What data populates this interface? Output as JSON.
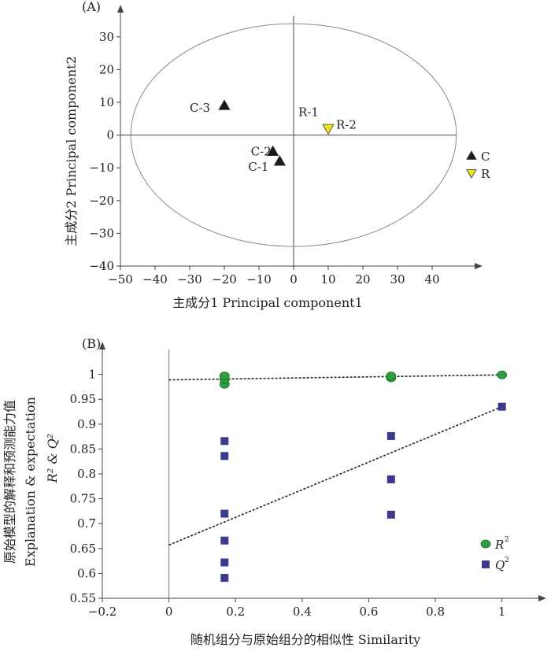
{
  "chart_data": [
    {
      "panel_label": "(A)",
      "type": "scatter",
      "xlabel": "主成分1 Principal component1",
      "ylabel": "主成分2 Principal component2",
      "xlim": [
        -50,
        50
      ],
      "ylim": [
        -40,
        35
      ],
      "xticks": [
        -50,
        -40,
        -30,
        -20,
        -10,
        0,
        10,
        20,
        30,
        40
      ],
      "yticks": [
        30,
        20,
        10,
        0,
        -10,
        -20,
        -30,
        -40
      ],
      "x_tick_labels": [
        "−50",
        "−40",
        "−30",
        "−20",
        "−10",
        "0",
        "10",
        "20",
        "30",
        "40"
      ],
      "y_tick_labels": [
        "30",
        "20",
        "10",
        "0",
        "−10",
        "−20",
        "−30",
        "−40"
      ],
      "ellipse": {
        "rx": 47,
        "ry": 34
      },
      "colors": {
        "C": "#1a1a1a",
        "R": "#f0e020",
        "ellipse": "#888888",
        "axes": "#444444"
      },
      "points": [
        {
          "label": "C-3",
          "x": -20,
          "y": 9,
          "group": "C"
        },
        {
          "label": "C-2",
          "x": -6,
          "y": -5,
          "group": "C"
        },
        {
          "label": "C-1",
          "x": -4,
          "y": -8,
          "group": "C"
        },
        {
          "label": "R-1",
          "x": 10,
          "y": 2,
          "group": "R"
        },
        {
          "label": "R-2",
          "x": 10,
          "y": 2,
          "group": "R"
        }
      ],
      "legend": [
        {
          "label": "C",
          "group": "C"
        },
        {
          "label": "R",
          "group": "R"
        }
      ]
    },
    {
      "panel_label": "(B)",
      "type": "scatter",
      "xlabel": "随机组分与原始组分的相似性 Similarity",
      "ylabel_lines": [
        "原始模型的解释和预测能力值",
        "Explanation & expectation",
        "R² & Q²"
      ],
      "xlim": [
        -0.2,
        1.1
      ],
      "ylim": [
        0.55,
        1.05
      ],
      "xticks": [
        -0.2,
        0,
        0.2,
        0.4,
        0.6,
        0.8,
        1
      ],
      "yticks": [
        0.55,
        0.6,
        0.65,
        0.7,
        0.75,
        0.8,
        0.85,
        0.9,
        0.95,
        1
      ],
      "x_tick_labels": [
        "−0.2",
        "0",
        "0.2",
        "0.4",
        "0.6",
        "0.8",
        "1"
      ],
      "y_tick_labels": [
        "0.55",
        "0.6",
        "0.65",
        "0.7",
        "0.75",
        "0.8",
        "0.85",
        "0.9",
        "0.95",
        "1"
      ],
      "colors": {
        "R2": "#2e9e3e",
        "Q2": "#3b3a8e",
        "trend": "#222222",
        "axes": "#444444"
      },
      "series": [
        {
          "name": "R²",
          "marker": "circle",
          "points": [
            [
              0.167,
              0.98
            ],
            [
              0.167,
              0.99
            ],
            [
              0.167,
              0.997
            ],
            [
              0.667,
              0.993
            ],
            [
              0.667,
              0.997
            ],
            [
              1,
              0.999
            ]
          ]
        },
        {
          "name": "Q²",
          "marker": "square",
          "points": [
            [
              0.167,
              0.866
            ],
            [
              0.167,
              0.836
            ],
            [
              0.167,
              0.72
            ],
            [
              0.167,
              0.666
            ],
            [
              0.167,
              0.622
            ],
            [
              0.167,
              0.591
            ],
            [
              0.667,
              0.876
            ],
            [
              0.667,
              0.789
            ],
            [
              0.667,
              0.718
            ],
            [
              1,
              0.935
            ]
          ]
        }
      ],
      "trendlines": [
        {
          "series": "R²",
          "from": [
            0,
            0.989
          ],
          "to": [
            1,
            0.999
          ]
        },
        {
          "series": "Q²",
          "from": [
            0,
            0.657
          ],
          "to": [
            1,
            0.935
          ]
        }
      ],
      "legend": [
        {
          "label": "R",
          "sup": "2",
          "marker": "circle"
        },
        {
          "label": "Q",
          "sup": "2",
          "marker": "square"
        }
      ]
    }
  ]
}
